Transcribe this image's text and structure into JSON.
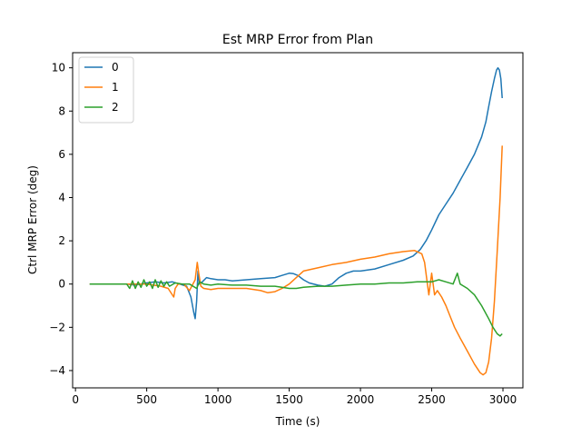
{
  "chart_data": {
    "type": "line",
    "title": "Est MRP Error from Plan",
    "xlabel": "Time (s)",
    "ylabel": "Ctrl MRP Error (deg)",
    "xlim": [
      -20,
      3140
    ],
    "ylim": [
      -4.8,
      10.7
    ],
    "xticks": [
      0,
      500,
      1000,
      1500,
      2000,
      2500,
      3000
    ],
    "yticks": [
      -4,
      -2,
      0,
      2,
      4,
      6,
      8,
      10
    ],
    "grid": false,
    "legend_position": "top-left",
    "series": [
      {
        "name": "0",
        "color": "#1f77b4",
        "points": [
          [
            100,
            0.0
          ],
          [
            360,
            0.0
          ],
          [
            420,
            -0.05
          ],
          [
            500,
            0.05
          ],
          [
            560,
            0.1
          ],
          [
            620,
            0.05
          ],
          [
            680,
            0.1
          ],
          [
            730,
            0.0
          ],
          [
            780,
            -0.1
          ],
          [
            810,
            -0.6
          ],
          [
            830,
            -1.3
          ],
          [
            840,
            -1.6
          ],
          [
            850,
            -0.8
          ],
          [
            860,
            0.6
          ],
          [
            870,
            0.0
          ],
          [
            890,
            0.1
          ],
          [
            920,
            0.3
          ],
          [
            950,
            0.25
          ],
          [
            1000,
            0.2
          ],
          [
            1050,
            0.2
          ],
          [
            1100,
            0.15
          ],
          [
            1200,
            0.2
          ],
          [
            1300,
            0.25
          ],
          [
            1400,
            0.3
          ],
          [
            1450,
            0.4
          ],
          [
            1500,
            0.5
          ],
          [
            1530,
            0.48
          ],
          [
            1560,
            0.4
          ],
          [
            1600,
            0.2
          ],
          [
            1640,
            0.05
          ],
          [
            1700,
            -0.05
          ],
          [
            1750,
            -0.1
          ],
          [
            1800,
            0.0
          ],
          [
            1850,
            0.3
          ],
          [
            1900,
            0.5
          ],
          [
            1950,
            0.6
          ],
          [
            2000,
            0.6
          ],
          [
            2100,
            0.7
          ],
          [
            2200,
            0.9
          ],
          [
            2300,
            1.1
          ],
          [
            2370,
            1.3
          ],
          [
            2420,
            1.6
          ],
          [
            2460,
            2.0
          ],
          [
            2500,
            2.5
          ],
          [
            2550,
            3.2
          ],
          [
            2600,
            3.7
          ],
          [
            2650,
            4.2
          ],
          [
            2700,
            4.8
          ],
          [
            2750,
            5.4
          ],
          [
            2800,
            6.0
          ],
          [
            2850,
            6.8
          ],
          [
            2880,
            7.5
          ],
          [
            2900,
            8.2
          ],
          [
            2920,
            8.9
          ],
          [
            2940,
            9.5
          ],
          [
            2955,
            9.9
          ],
          [
            2965,
            10.0
          ],
          [
            2975,
            9.9
          ],
          [
            2985,
            9.5
          ],
          [
            2995,
            8.6
          ]
        ]
      },
      {
        "name": "1",
        "color": "#ff7f0e",
        "points": [
          [
            100,
            0.0
          ],
          [
            400,
            0.0
          ],
          [
            500,
            0.0
          ],
          [
            600,
            -0.1
          ],
          [
            650,
            -0.2
          ],
          [
            690,
            -0.6
          ],
          [
            700,
            -0.2
          ],
          [
            720,
            0.0
          ],
          [
            760,
            0.0
          ],
          [
            800,
            -0.3
          ],
          [
            840,
            0.2
          ],
          [
            855,
            1.0
          ],
          [
            865,
            0.5
          ],
          [
            880,
            -0.1
          ],
          [
            900,
            -0.2
          ],
          [
            950,
            -0.25
          ],
          [
            1000,
            -0.2
          ],
          [
            1100,
            -0.2
          ],
          [
            1200,
            -0.2
          ],
          [
            1300,
            -0.3
          ],
          [
            1350,
            -0.4
          ],
          [
            1400,
            -0.35
          ],
          [
            1450,
            -0.2
          ],
          [
            1500,
            0.0
          ],
          [
            1550,
            0.3
          ],
          [
            1600,
            0.6
          ],
          [
            1700,
            0.75
          ],
          [
            1800,
            0.9
          ],
          [
            1900,
            1.0
          ],
          [
            2000,
            1.15
          ],
          [
            2100,
            1.25
          ],
          [
            2200,
            1.4
          ],
          [
            2300,
            1.5
          ],
          [
            2380,
            1.55
          ],
          [
            2430,
            1.4
          ],
          [
            2450,
            1.0
          ],
          [
            2470,
            0.0
          ],
          [
            2480,
            -0.5
          ],
          [
            2500,
            0.5
          ],
          [
            2520,
            -0.5
          ],
          [
            2540,
            -0.3
          ],
          [
            2570,
            -0.6
          ],
          [
            2600,
            -1.0
          ],
          [
            2630,
            -1.5
          ],
          [
            2660,
            -2.0
          ],
          [
            2700,
            -2.5
          ],
          [
            2750,
            -3.1
          ],
          [
            2800,
            -3.7
          ],
          [
            2840,
            -4.1
          ],
          [
            2860,
            -4.2
          ],
          [
            2880,
            -4.1
          ],
          [
            2900,
            -3.6
          ],
          [
            2920,
            -2.5
          ],
          [
            2940,
            -0.8
          ],
          [
            2960,
            1.5
          ],
          [
            2980,
            4.0
          ],
          [
            2995,
            6.4
          ]
        ]
      },
      {
        "name": "2",
        "color": "#2ca02c",
        "points": [
          [
            100,
            0.0
          ],
          [
            360,
            0.0
          ],
          [
            380,
            -0.2
          ],
          [
            400,
            0.15
          ],
          [
            420,
            -0.2
          ],
          [
            440,
            0.1
          ],
          [
            460,
            -0.15
          ],
          [
            480,
            0.2
          ],
          [
            500,
            -0.1
          ],
          [
            520,
            0.1
          ],
          [
            540,
            -0.2
          ],
          [
            560,
            0.2
          ],
          [
            580,
            -0.15
          ],
          [
            600,
            0.15
          ],
          [
            620,
            -0.1
          ],
          [
            640,
            0.1
          ],
          [
            660,
            -0.1
          ],
          [
            700,
            0.05
          ],
          [
            750,
            0.0
          ],
          [
            800,
            0.0
          ],
          [
            850,
            -0.2
          ],
          [
            870,
            0.1
          ],
          [
            900,
            0.0
          ],
          [
            950,
            -0.05
          ],
          [
            1000,
            0.0
          ],
          [
            1100,
            -0.05
          ],
          [
            1200,
            -0.05
          ],
          [
            1300,
            -0.1
          ],
          [
            1400,
            -0.1
          ],
          [
            1500,
            -0.2
          ],
          [
            1550,
            -0.2
          ],
          [
            1600,
            -0.15
          ],
          [
            1700,
            -0.1
          ],
          [
            1800,
            -0.1
          ],
          [
            1900,
            -0.05
          ],
          [
            2000,
            0.0
          ],
          [
            2100,
            0.0
          ],
          [
            2200,
            0.05
          ],
          [
            2300,
            0.05
          ],
          [
            2400,
            0.1
          ],
          [
            2500,
            0.1
          ],
          [
            2550,
            0.2
          ],
          [
            2600,
            0.1
          ],
          [
            2650,
            0.0
          ],
          [
            2680,
            0.5
          ],
          [
            2700,
            0.0
          ],
          [
            2750,
            -0.2
          ],
          [
            2800,
            -0.5
          ],
          [
            2850,
            -1.0
          ],
          [
            2900,
            -1.6
          ],
          [
            2930,
            -2.0
          ],
          [
            2960,
            -2.3
          ],
          [
            2980,
            -2.4
          ],
          [
            2995,
            -2.3
          ]
        ]
      }
    ]
  }
}
